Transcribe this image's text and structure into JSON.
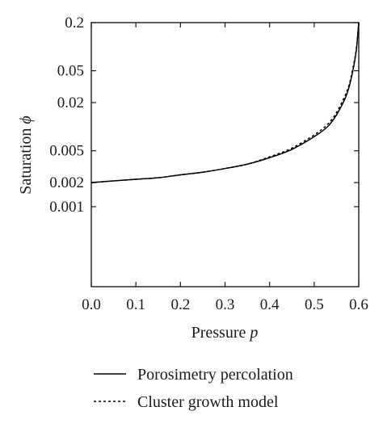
{
  "chart_data": {
    "type": "line",
    "xlabel": {
      "text": "Pressure",
      "var": "p"
    },
    "ylabel": {
      "text": "Saturation",
      "var": "ϕ"
    },
    "xlim": [
      0.0,
      0.6
    ],
    "ylim": [
      0.0001,
      0.2
    ],
    "yscale": "log",
    "grid": false,
    "legend_position": "below",
    "x_ticks": [
      "0.0",
      "0.1",
      "0.2",
      "0.3",
      "0.4",
      "0.5",
      "0.6"
    ],
    "y_ticks": [
      "0.2",
      "0.05",
      "0.02",
      "0.005",
      "0.002",
      "0.001"
    ],
    "y_tick_values": [
      0.2,
      0.05,
      0.02,
      0.005,
      0.002,
      0.001
    ],
    "series": [
      {
        "name": "Porosimetry percolation",
        "style": "solid",
        "color": "#000000",
        "x": [
          0.0,
          0.05,
          0.1,
          0.15,
          0.2,
          0.25,
          0.3,
          0.35,
          0.4,
          0.45,
          0.5,
          0.53,
          0.55,
          0.57,
          0.58,
          0.59,
          0.595,
          0.6
        ],
        "y": [
          0.002,
          0.0021,
          0.0022,
          0.0023,
          0.0025,
          0.0027,
          0.003,
          0.0034,
          0.0041,
          0.0052,
          0.0075,
          0.01,
          0.014,
          0.023,
          0.034,
          0.062,
          0.095,
          0.2
        ]
      },
      {
        "name": "Cluster growth model",
        "style": "dotted",
        "color": "#000000",
        "x": [
          0.0,
          0.05,
          0.1,
          0.15,
          0.2,
          0.25,
          0.3,
          0.35,
          0.4,
          0.45,
          0.5,
          0.53,
          0.55,
          0.57,
          0.58,
          0.59,
          0.595,
          0.6
        ],
        "y": [
          0.002,
          0.0021,
          0.0022,
          0.0023,
          0.0025,
          0.0027,
          0.003,
          0.0034,
          0.0042,
          0.0054,
          0.0079,
          0.0107,
          0.015,
          0.025,
          0.036,
          0.066,
          0.1,
          0.2
        ]
      }
    ]
  }
}
